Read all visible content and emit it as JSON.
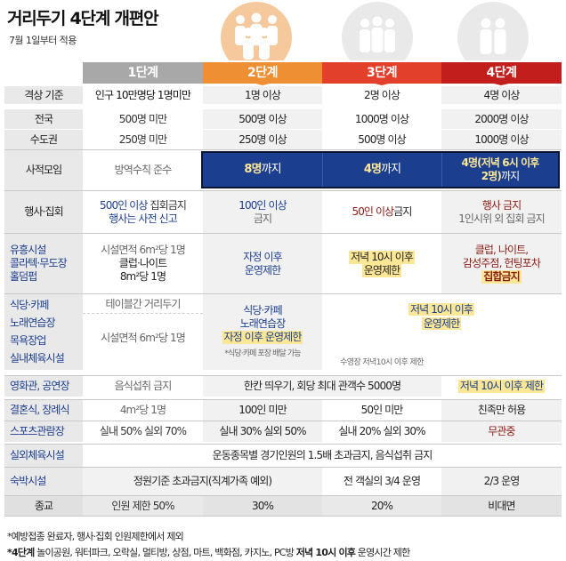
{
  "header": {
    "title": "거리두기 4단계 개편안",
    "subtitle": "7월 1일부터 적용"
  },
  "levels": [
    "1단계",
    "2단계",
    "3단계",
    "4단계"
  ],
  "colors": {
    "level1": "#a8a8a8",
    "level2": "#ef8f34",
    "level3": "#e2402b",
    "level4": "#c21f1c",
    "navy": "#1c3e8e",
    "meeting_box": "#1b2a63"
  },
  "icons": [
    "people-group-icon-large",
    "people-group-icon-medium",
    "people-group-icon-small",
    "people-pair-icon"
  ],
  "rows": {
    "criteria": {
      "label": "격상 기준",
      "v1": "인구 10만명당 1명미만",
      "v2": "1명 이상",
      "v3": "2명 이상",
      "v4": "4명 이상"
    },
    "nation": {
      "label": "전국",
      "v1": "500명 미만",
      "v2": "500명 이상",
      "v3": "1000명 이상",
      "v4": "2000명 이상"
    },
    "capital": {
      "label": "수도권",
      "v1": "250명 미만",
      "v2": "250명 이상",
      "v3": "500명 이상",
      "v4": "1000명 이상"
    },
    "meeting": {
      "label": "사적모임",
      "v1": "방역수칙 준수",
      "v2_a": "8명",
      "v2_b": "까지",
      "v3_a": "4명",
      "v3_b": "까지",
      "v4_a": "4명",
      "v4_b": "(저녁 6시 이후",
      "v4_c": "2명)",
      "v4_d": "까지"
    },
    "assembly": {
      "label": "행사·집회",
      "v1_a": "500인 이상",
      "v1_b": " 집회금지",
      "v1_c": "행사는 사전 신고",
      "v2_a": "100인 이상",
      "v2_b": "금지",
      "v3_a": "50인 이상",
      "v3_b": " 금지",
      "v4_a": "행사 금지",
      "v4_b": "1인시위 외 집회 금지"
    },
    "entertainment": {
      "label_a": "유흥시설",
      "label_b": "콜라텍·무도장",
      "label_c": "홀덤펍",
      "v1_a": "시설면적 6m²당 1명",
      "v1_b": "클럽·나이트",
      "v1_c": "8m²당 1명",
      "v2_a": "자정 이후",
      "v2_b": "운영제한",
      "v3_a": "저녁 10시 이후",
      "v3_b": "운영제한",
      "v4_a": "클럽, 나이트,",
      "v4_b": "감성주점, 헌팅포차",
      "v4_c": "집합금지"
    },
    "food": {
      "label_a": "식당·카페",
      "label_b": "노래연습장",
      "label_c": "목욕장업",
      "label_d": "실내체육시설",
      "v1_a": "테이블간 거리두기",
      "v1_b": "시설면적 6m²당 1명",
      "v2_a": "식당·카페",
      "v2_b": "노래연습장",
      "v2_c": "자정 이후 운영제한",
      "v2_note": "*식당·카페 포장 배달 가능",
      "v34_a": "저녁 10시 이후",
      "v34_b": "운영제한",
      "v3_note": "수영장 저녁10시 이후 제한"
    },
    "cinema": {
      "label": "영화관, 공연장",
      "v1": "음식섭취 금지",
      "v23": "한칸 띄우기, 회당 최대 관객수 5000명",
      "v4": "저녁 10시 이후 제한"
    },
    "wedding": {
      "label": "결혼식, 장례식",
      "v1": "4m²당 1명",
      "v2": "100인 미만",
      "v3": "50인 미만",
      "v4": "친족만 허용"
    },
    "sports": {
      "label": "스포츠관람장",
      "v1": "실내 50% 실외 70%",
      "v2": "실내 30% 실외 50%",
      "v3": "실내 20% 실외 30%",
      "v4": "무관중"
    },
    "outdoor": {
      "label": "실외체육시설",
      "v": "운동종목별 경기인원의 1.5배 초과금지, 음식섭취 금지"
    },
    "lodging": {
      "label": "숙박시설",
      "v12": "정원기준 초과금지(직계가족 예외)",
      "v3": "전 객실의 3/4 운영",
      "v4": "2/3 운영"
    },
    "religion": {
      "label": "종교",
      "v1": "인원 제한 50%",
      "v2": "30%",
      "v3": "20%",
      "v4": "비대면"
    }
  },
  "notes": {
    "n1": "*예방접종 완료자, 행사·집회 인원제한에서 제외",
    "n2_a": "*4단계",
    "n2_b": " 놀이공원, 워터파크, 오락실, 멀티방, 상점, 마트, 백화점, 카지노, PC방 ",
    "n2_c": "저녁 10시 이후",
    "n2_d": " 운영시간 제한"
  }
}
